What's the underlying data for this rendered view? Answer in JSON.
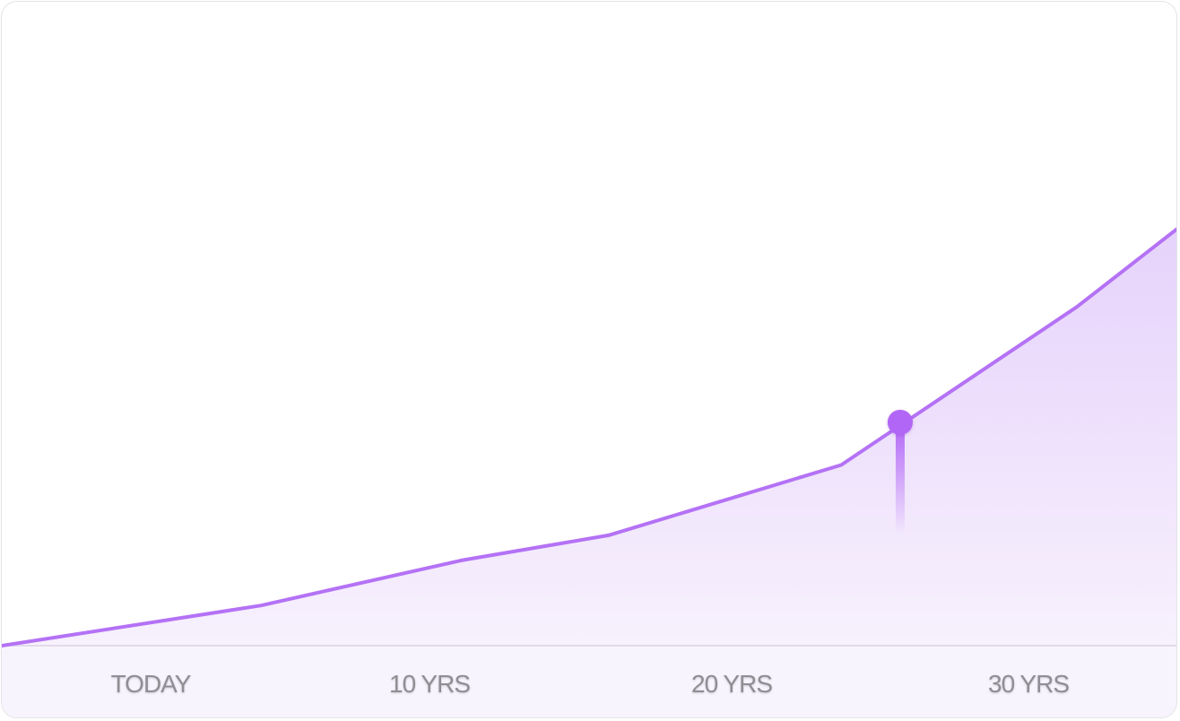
{
  "chart_data": {
    "type": "area",
    "x_tick_labels": [
      "TODAY",
      "10 YRS",
      "20 YRS",
      "30 YRS"
    ],
    "x": [
      0,
      8.8,
      15.6,
      20.6,
      28.5,
      36.5,
      40
    ],
    "y": [
      0,
      16,
      34,
      44,
      72,
      135,
      167
    ],
    "xlim": [
      0,
      40
    ],
    "ylim": [
      0,
      228
    ],
    "grid": false,
    "legend": "none",
    "highlight_point": {
      "x": 30.5,
      "y": 89
    },
    "colors": {
      "line": "#b472f5",
      "fill_top": "#e6d2fb",
      "fill_bottom": "#f7f1fd",
      "marker": "#b266f6",
      "axis_band": "#f8f4fd",
      "baseline": "#dcd3e6",
      "tick_text": "#8e8e93"
    }
  }
}
